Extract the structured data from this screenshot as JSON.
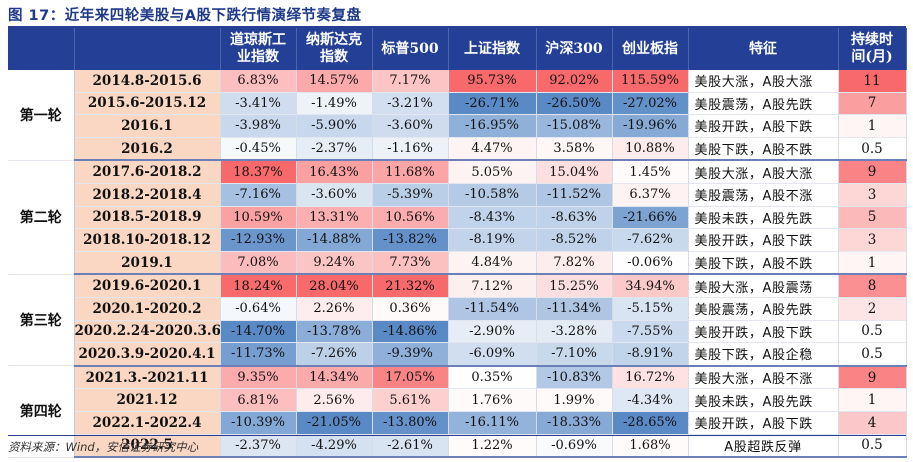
{
  "title": "图 17：近年来四轮美股与A股下跌行情演绎节奏复盘",
  "source": "资料来源：Wind，安信证券研究中心",
  "headers": [
    "",
    "",
    "道琼斯工业指数",
    "纳斯达克指数",
    "标普500",
    "上证指数",
    "沪深300",
    "创业板指",
    "特征",
    "持续时间(月)"
  ],
  "headers_display": [
    "",
    "",
    "道琼斯工\n业指数",
    "纳斯达克\n指数",
    "标普500",
    "上证指数",
    "沪深300",
    "创业板指",
    "特征",
    "持续时\n间(月)"
  ],
  "rounds": [
    {
      "name": "第一轮",
      "rows": [
        {
          "period": "2014.8-2015.6",
          "values": [
            "6.83%",
            "14.57%",
            "7.17%",
            "95.73%",
            "92.02%",
            "115.59%"
          ],
          "feature": "美股大涨，A股大涨",
          "duration": "11"
        },
        {
          "period": "2015.6-2015.12",
          "values": [
            "-3.41%",
            "-1.49%",
            "-3.21%",
            "-26.71%",
            "-26.50%",
            "-27.02%"
          ],
          "feature": "美股震荡，A股先跌",
          "duration": "7"
        },
        {
          "period": "2016.1",
          "values": [
            "-3.98%",
            "-5.90%",
            "-3.60%",
            "-16.95%",
            "-15.08%",
            "-19.96%"
          ],
          "feature": "美股开跌，A股下跌",
          "duration": "1"
        },
        {
          "period": "2016.2",
          "values": [
            "-0.45%",
            "-2.37%",
            "-1.16%",
            "4.47%",
            "3.58%",
            "10.88%"
          ],
          "feature": "美股下跌，A股不跌",
          "duration": "0.5"
        }
      ]
    },
    {
      "name": "第二轮",
      "rows": [
        {
          "period": "2017.6-2018.2",
          "values": [
            "18.37%",
            "16.43%",
            "11.68%",
            "5.05%",
            "15.04%",
            "1.45%"
          ],
          "feature": "美股大涨，A股大涨",
          "duration": "9"
        },
        {
          "period": "2018.2-2018.4",
          "values": [
            "-7.16%",
            "-3.60%",
            "-5.39%",
            "-10.58%",
            "-11.52%",
            "6.37%"
          ],
          "feature": "美股震荡，A股不涨",
          "duration": "3"
        },
        {
          "period": "2018.5-2018.9",
          "values": [
            "10.59%",
            "13.31%",
            "10.56%",
            "-8.43%",
            "-8.63%",
            "-21.66%"
          ],
          "feature": "美股未跌，A股先跌",
          "duration": "5"
        },
        {
          "period": "2018.10-2018.12",
          "values": [
            "-12.93%",
            "-14.88%",
            "-13.82%",
            "-8.19%",
            "-8.52%",
            "-7.62%"
          ],
          "feature": "美股开跌，A股下跌",
          "duration": "3"
        },
        {
          "period": "2019.1",
          "values": [
            "7.08%",
            "9.24%",
            "7.73%",
            "4.84%",
            "7.82%",
            "-0.06%"
          ],
          "feature": "美股下跌，A股不跌",
          "duration": "1"
        }
      ]
    },
    {
      "name": "第三轮",
      "rows": [
        {
          "period": "2019.6-2020.1",
          "values": [
            "18.24%",
            "28.04%",
            "21.32%",
            "7.12%",
            "15.25%",
            "34.94%"
          ],
          "feature": "美股大涨，A股震荡",
          "duration": "8"
        },
        {
          "period": "2020.1-2020.2",
          "values": [
            "-0.64%",
            "2.26%",
            "0.36%",
            "-11.54%",
            "-11.34%",
            "-5.15%"
          ],
          "feature": "美股震荡，A股先跌",
          "duration": "2"
        },
        {
          "period": "2020.2.24-2020.3.6",
          "values": [
            "-14.70%",
            "-13.78%",
            "-14.86%",
            "-2.90%",
            "-3.28%",
            "-7.55%"
          ],
          "feature": "美股开跌，A股下跌",
          "duration": "0.5"
        },
        {
          "period": "2020.3.9-2020.4.1",
          "values": [
            "-11.73%",
            "-7.26%",
            "-9.39%",
            "-6.09%",
            "-7.10%",
            "-8.91%"
          ],
          "feature": "美股下跌，A股企稳",
          "duration": "0.5"
        }
      ]
    },
    {
      "name": "第四轮",
      "rows": [
        {
          "period": "2021.3.-2021.11",
          "values": [
            "9.35%",
            "14.34%",
            "17.05%",
            "0.35%",
            "-10.83%",
            "16.72%"
          ],
          "feature": "美股大涨，A股不涨",
          "duration": "9"
        },
        {
          "period": "2021.12",
          "values": [
            "6.81%",
            "2.56%",
            "5.61%",
            "1.76%",
            "1.99%",
            "-4.34%"
          ],
          "feature": "美股未跌，A股先跌",
          "duration": "1"
        },
        {
          "period": "2022.1-2022.4",
          "values": [
            "-10.39%",
            "-21.05%",
            "-13.80%",
            "-16.11%",
            "-18.33%",
            "-28.65%"
          ],
          "feature": "美股开跌，A股下跌",
          "duration": "4"
        },
        {
          "period": "2022.5",
          "values": [
            "-2.37%",
            "-4.29%",
            "-2.61%",
            "1.22%",
            "-0.69%",
            "1.68%"
          ],
          "feature": "A股超跌反弹",
          "duration": "0.5"
        }
      ]
    }
  ],
  "colors": {
    "header_bg": "#233f96",
    "period_bg": "#f9d7c3",
    "positive": "#f8696b",
    "negative": "#5a8ac6",
    "neutral": "#ffffff",
    "duration_high": "#f8696b"
  }
}
